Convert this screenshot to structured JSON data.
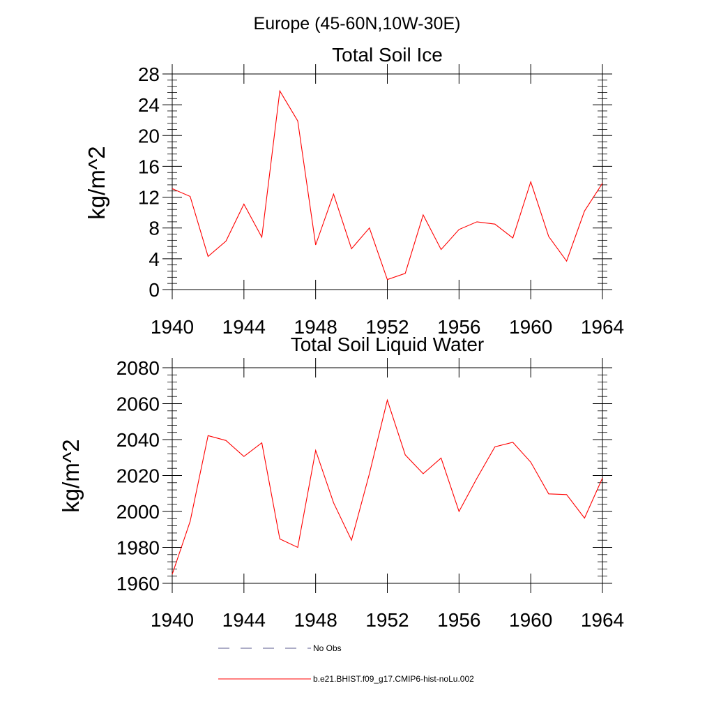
{
  "figure": {
    "title": "Europe (45-60N,10W-30E)"
  },
  "chart_data": [
    {
      "type": "line",
      "title": "Total Soil Ice",
      "xlabel": "",
      "ylabel": "kg/m^2",
      "xlim": [
        1940,
        1964
      ],
      "ylim": [
        0,
        28
      ],
      "xticks": [
        1940,
        1944,
        1948,
        1952,
        1956,
        1960,
        1964
      ],
      "yticks": [
        0,
        4,
        8,
        12,
        16,
        20,
        24,
        28
      ],
      "grid": false,
      "series": [
        {
          "name": "b.e21.BHIST.f09_g17.CMIP6-hist-noLu.002",
          "color": "#ff0000",
          "x": [
            1940,
            1941,
            1942,
            1943,
            1944,
            1945,
            1946,
            1947,
            1948,
            1949,
            1950,
            1951,
            1952,
            1953,
            1954,
            1955,
            1956,
            1957,
            1958,
            1959,
            1960,
            1961,
            1962,
            1963,
            1964
          ],
          "values": [
            13.1,
            12.1,
            4.3,
            6.3,
            11.1,
            6.8,
            25.8,
            21.9,
            5.8,
            12.4,
            5.3,
            8.0,
            1.3,
            2.1,
            9.7,
            5.2,
            7.8,
            8.8,
            8.5,
            6.7,
            14.0,
            6.9,
            3.7,
            10.2,
            13.8
          ]
        }
      ]
    },
    {
      "type": "line",
      "title": "Total Soil Liquid Water",
      "xlabel": "",
      "ylabel": "kg/m^2",
      "xlim": [
        1940,
        1964
      ],
      "ylim": [
        1960,
        2080
      ],
      "xticks": [
        1940,
        1944,
        1948,
        1952,
        1956,
        1960,
        1964
      ],
      "yticks": [
        1960,
        1980,
        2000,
        2020,
        2040,
        2060,
        2080
      ],
      "grid": false,
      "series": [
        {
          "name": "b.e21.BHIST.f09_g17.CMIP6-hist-noLu.002",
          "color": "#ff0000",
          "x": [
            1940,
            1941,
            1942,
            1943,
            1944,
            1945,
            1946,
            1947,
            1948,
            1949,
            1950,
            1951,
            1952,
            1953,
            1954,
            1955,
            1956,
            1957,
            1958,
            1959,
            1960,
            1961,
            1962,
            1963,
            1964
          ],
          "values": [
            1965.0,
            1994.5,
            2042.2,
            2039.5,
            2030.6,
            2038.2,
            1984.7,
            1980.0,
            2034.0,
            2004.8,
            1984.0,
            2021.0,
            2062.0,
            2031.5,
            2021.0,
            2029.7,
            2000.0,
            2018.5,
            2036.0,
            2038.5,
            2027.4,
            2009.8,
            2009.4,
            1996.3,
            2018.6
          ]
        }
      ]
    }
  ],
  "legend": {
    "position": "bottom",
    "items": [
      {
        "label": "No Obs",
        "style": "dashed",
        "color": "#5a5a8c"
      },
      {
        "label": "b.e21.BHIST.f09_g17.CMIP6-hist-noLu.002",
        "style": "solid",
        "color": "#ff0000"
      }
    ]
  }
}
